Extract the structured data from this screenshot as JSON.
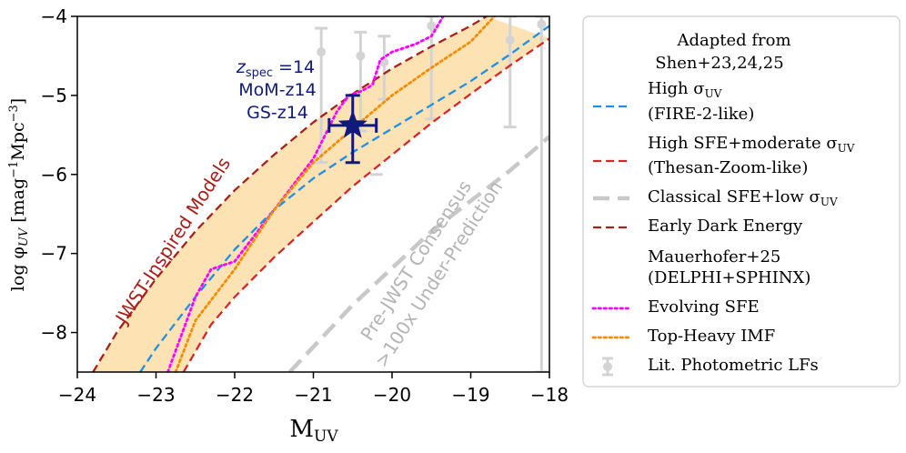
{
  "chart_data": {
    "type": "line",
    "xlabel": "M",
    "xlabel_sub": "UV",
    "ylabel": "log φ",
    "ylabel_sub": "UV",
    "ylabel_units": "[mag",
    "ylabel_units_exp": "−1",
    "ylabel_units_mid": "Mpc",
    "ylabel_units_exp2": "−3",
    "ylabel_units_end": "]",
    "xlim": [
      -24,
      -18
    ],
    "ylim": [
      -8.5,
      -4
    ],
    "xticks": [
      -24,
      -23,
      -22,
      -21,
      -20,
      -19,
      -18
    ],
    "xtick_labels": [
      "−24",
      "−23",
      "−22",
      "−21",
      "−20",
      "−19",
      "−18"
    ],
    "yticks": [
      -8,
      -7,
      -6,
      -5,
      -4
    ],
    "ytick_labels": [
      "−8",
      "−7",
      "−6",
      "−5",
      "−4"
    ],
    "band": {
      "name": "JWST-Inspired Models",
      "color": "#fde3b4",
      "upper": [
        [
          -23.8,
          -8.5
        ],
        [
          -23.5,
          -8.0
        ],
        [
          -23.0,
          -7.32
        ],
        [
          -22.5,
          -6.72
        ],
        [
          -22.0,
          -6.2
        ],
        [
          -21.5,
          -5.75
        ],
        [
          -21.0,
          -5.34
        ],
        [
          -20.5,
          -4.98
        ],
        [
          -20.0,
          -4.66
        ],
        [
          -19.5,
          -4.38
        ],
        [
          -19.0,
          -4.12
        ],
        [
          -18.8,
          -4.0
        ]
      ],
      "lower": [
        [
          -22.65,
          -8.5
        ],
        [
          -22.3,
          -7.9
        ],
        [
          -22.0,
          -7.55
        ],
        [
          -21.5,
          -7.05
        ],
        [
          -21.0,
          -6.6
        ],
        [
          -20.5,
          -6.15
        ],
        [
          -20.0,
          -5.75
        ],
        [
          -19.5,
          -5.35
        ],
        [
          -19.0,
          -4.98
        ],
        [
          -18.5,
          -4.62
        ],
        [
          -18.0,
          -4.28
        ]
      ]
    },
    "series": [
      {
        "name": "High σ_UV (FIRE-2-like)",
        "color": "#1f8fe6",
        "style": "dash",
        "points": [
          [
            -23.2,
            -8.5
          ],
          [
            -23.0,
            -8.2
          ],
          [
            -22.5,
            -7.55
          ],
          [
            -22.0,
            -6.95
          ],
          [
            -21.5,
            -6.45
          ],
          [
            -21.0,
            -6.05
          ],
          [
            -20.5,
            -5.72
          ],
          [
            -20.0,
            -5.42
          ],
          [
            -19.5,
            -5.12
          ],
          [
            -19.0,
            -4.82
          ],
          [
            -18.5,
            -4.48
          ],
          [
            -18.0,
            -4.12
          ]
        ]
      },
      {
        "name": "High SFE+moderate σ_UV (Thesan-Zoom-like)",
        "color": "#d62728",
        "style": "dash",
        "points": [
          [
            -22.65,
            -8.5
          ],
          [
            -22.3,
            -7.9
          ],
          [
            -22.0,
            -7.55
          ],
          [
            -21.5,
            -7.05
          ],
          [
            -21.0,
            -6.6
          ],
          [
            -20.5,
            -6.15
          ],
          [
            -20.0,
            -5.75
          ],
          [
            -19.5,
            -5.35
          ],
          [
            -19.0,
            -4.98
          ],
          [
            -18.5,
            -4.62
          ],
          [
            -18.0,
            -4.28
          ]
        ]
      },
      {
        "name": "Classical SFE+low σ_UV",
        "color": "#c8c8c8",
        "style": "longdash",
        "points": [
          [
            -21.3,
            -8.5
          ],
          [
            -20.5,
            -7.65
          ],
          [
            -19.5,
            -6.72
          ],
          [
            -18.5,
            -5.95
          ],
          [
            -18.0,
            -5.52
          ]
        ]
      },
      {
        "name": "Early Dark Energy",
        "color": "#a8201a",
        "style": "dash",
        "points": [
          [
            -23.8,
            -8.5
          ],
          [
            -23.5,
            -8.0
          ],
          [
            -23.0,
            -7.32
          ],
          [
            -22.5,
            -6.72
          ],
          [
            -22.0,
            -6.2
          ],
          [
            -21.5,
            -5.75
          ],
          [
            -21.0,
            -5.34
          ],
          [
            -20.5,
            -4.98
          ],
          [
            -20.0,
            -4.66
          ],
          [
            -19.5,
            -4.38
          ],
          [
            -19.0,
            -4.12
          ],
          [
            -18.8,
            -4.0
          ]
        ]
      },
      {
        "name": "Evolving SFE",
        "color": "#ff00ff",
        "style": "dot",
        "points": [
          [
            -22.85,
            -8.5
          ],
          [
            -22.5,
            -7.55
          ],
          [
            -22.3,
            -7.2
          ],
          [
            -22.0,
            -7.1
          ],
          [
            -21.5,
            -6.45
          ],
          [
            -21.0,
            -5.8
          ],
          [
            -20.7,
            -5.2
          ],
          [
            -20.55,
            -5.0
          ],
          [
            -20.4,
            -4.95
          ],
          [
            -20.25,
            -4.87
          ],
          [
            -20.15,
            -4.55
          ],
          [
            -20.0,
            -4.45
          ],
          [
            -19.7,
            -4.35
          ],
          [
            -19.5,
            -4.25
          ],
          [
            -19.35,
            -4.0
          ]
        ]
      },
      {
        "name": "Top-Heavy IMF",
        "color": "#f28c00",
        "style": "dot",
        "points": [
          [
            -22.75,
            -8.5
          ],
          [
            -22.5,
            -7.85
          ],
          [
            -22.0,
            -7.2
          ],
          [
            -21.5,
            -6.45
          ],
          [
            -21.0,
            -5.85
          ],
          [
            -20.5,
            -5.42
          ],
          [
            -20.0,
            -5.0
          ],
          [
            -19.5,
            -4.65
          ],
          [
            -19.0,
            -4.32
          ],
          [
            -18.7,
            -4.0
          ]
        ]
      }
    ],
    "lit_points": [
      {
        "x": -20.9,
        "y": -4.45,
        "ylo": -5.85,
        "yhi": -4.15
      },
      {
        "x": -20.4,
        "y": -4.5,
        "ylo": -5.45,
        "yhi": -4.2
      },
      {
        "x": -20.1,
        "y": -4.58,
        "ylo": -5.05,
        "yhi": -4.25
      },
      {
        "x": -20.2,
        "y": -6.0,
        "ylo": -6.0,
        "yhi": -6.0
      },
      {
        "x": -19.5,
        "y": -4.12,
        "ylo": -5.3,
        "yhi": -4.0
      },
      {
        "x": -18.5,
        "y": -4.3,
        "ylo": -5.4,
        "yhi": -4.0
      },
      {
        "x": -18.1,
        "y": -4.1,
        "ylo": -8.5,
        "yhi": -4.0
      }
    ],
    "highlight": {
      "x": -20.5,
      "y": -5.38,
      "xerr": 0.3,
      "ylo": -5.85,
      "yhi": -5.0,
      "color": "#0f1a7a",
      "label_line1_main": "z",
      "label_line1_sub": "spec",
      "label_line1_rest": " =14",
      "label_line2": "MoM-z14",
      "label_line3": "GS-z14"
    },
    "annotations": {
      "band_label": "JWST-Inspired Models",
      "prejwst_line1": "Pre-JWST Consensus",
      "prejwst_line2": ">100x Under-Prediction"
    }
  },
  "legend": {
    "title_line1": "Adapted from",
    "title_line2": "Shen+23,24,25",
    "entries": [
      {
        "line1": "High σ",
        "line1_sub": "UV",
        "line2": "(FIRE-2-like)",
        "color": "#1f8fe6",
        "style": "dash"
      },
      {
        "line1": "High SFE+moderate σ",
        "line1_sub": "UV",
        "line2": "(Thesan-Zoom-like)",
        "color": "#d62728",
        "style": "dash"
      },
      {
        "line1": "Classical SFE+low σ",
        "line1_sub": "UV",
        "line2": "",
        "color": "#c8c8c8",
        "style": "longdash"
      },
      {
        "line1": "Early Dark Energy",
        "line1_sub": "",
        "line2": "",
        "color": "#a8201a",
        "style": "dash"
      },
      {
        "line1": "Mauerhofer+25",
        "line1_sub": "",
        "line2": "(DELPHI+SPHINX)",
        "color": "",
        "style": "none"
      },
      {
        "line1": "Evolving SFE",
        "line1_sub": "",
        "line2": "",
        "color": "#ff00ff",
        "style": "dot"
      },
      {
        "line1": "Top-Heavy IMF",
        "line1_sub": "",
        "line2": "",
        "color": "#f28c00",
        "style": "dot"
      },
      {
        "line1": "Lit. Photometric LFs",
        "line1_sub": "",
        "line2": "",
        "color": "#d3d3d3",
        "style": "errpoint"
      }
    ]
  }
}
